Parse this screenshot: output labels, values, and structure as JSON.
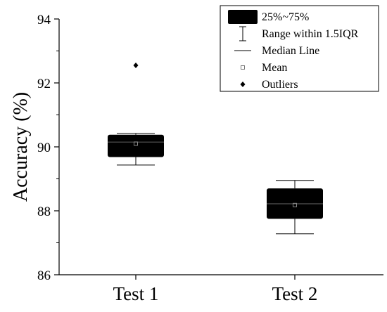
{
  "chart_data": {
    "type": "box",
    "title": "",
    "xlabel": "",
    "ylabel": "Accuracy (%)",
    "ylim": [
      86,
      94
    ],
    "y_ticks": [
      {
        "value": 86,
        "label": "86"
      },
      {
        "value": 88,
        "label": "88"
      },
      {
        "value": 90,
        "label": "90"
      },
      {
        "value": 92,
        "label": "92"
      },
      {
        "value": 94,
        "label": "94"
      }
    ],
    "categories": [
      "Test 1",
      "Test 2"
    ],
    "boxes": [
      {
        "category": "Test 1",
        "q1": 89.68,
        "median": 90.15,
        "q3": 90.38,
        "whisker_low": 89.43,
        "whisker_high": 90.42,
        "mean": 90.1,
        "outliers": [
          92.55
        ]
      },
      {
        "category": "Test 2",
        "q1": 87.75,
        "median": 88.22,
        "q3": 88.7,
        "whisker_low": 87.28,
        "whisker_high": 88.95,
        "mean": 88.18,
        "outliers": []
      }
    ],
    "legend": {
      "position": "top-right",
      "entries": [
        {
          "label": "25%~75%",
          "symbol": "box"
        },
        {
          "label": "Range within 1.5IQR",
          "symbol": "whisker"
        },
        {
          "label": "Median Line",
          "symbol": "line"
        },
        {
          "label": "Mean",
          "symbol": "square"
        },
        {
          "label": "Outliers",
          "symbol": "diamond"
        }
      ]
    },
    "colors": {
      "box": "#000000",
      "median": "#555555",
      "mean": "#888888",
      "axis": "#000000"
    }
  }
}
